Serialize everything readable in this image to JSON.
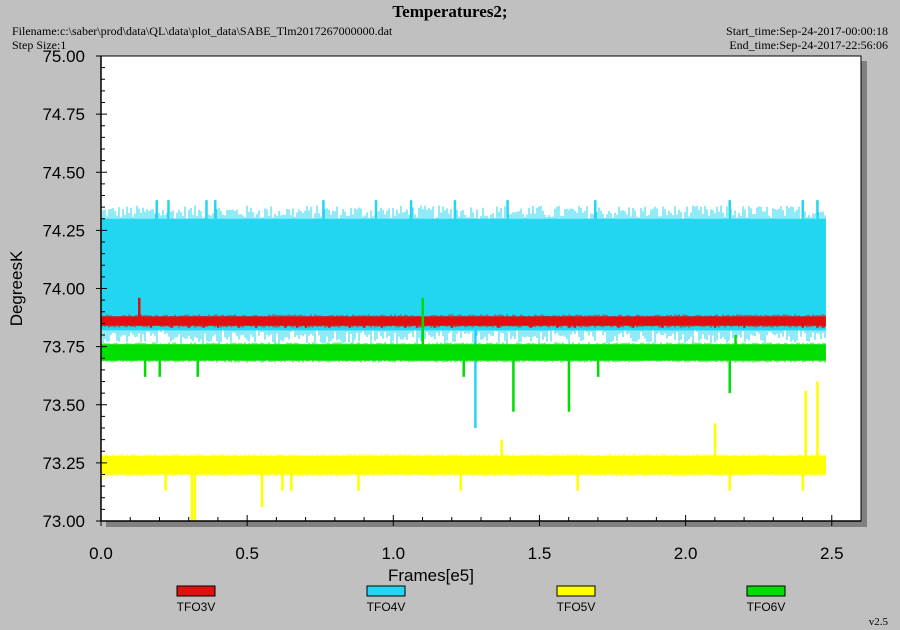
{
  "header": {
    "title": "Temperatures2;",
    "filename": "Filename:c:\\saber\\prod\\data\\QL\\data\\plot_data\\SABE_Tlm2017267000000.dat",
    "step_size": "Step Size:1",
    "start_time": "Start_time:Sep-24-2017-00:00:18",
    "end_time": "End_time:Sep-24-2017-22:56:06"
  },
  "version": "v2.5",
  "colors": {
    "background": "#c0c0c0",
    "plot_area": "#ffffff",
    "TFO3V": "#e01010",
    "TFO4V": "#22d5f0",
    "TFO5V": "#ffff00",
    "TFO6V": "#00dd00"
  },
  "chart_data": {
    "type": "line",
    "title": "Temperatures2;",
    "xlabel": "Frames[e5]",
    "ylabel": "DegreesK",
    "xlim": [
      0,
      2.6
    ],
    "ylim": [
      73.0,
      75.0
    ],
    "x_ticks": [
      "0.0",
      "0.5",
      "1.0",
      "1.5",
      "2.0",
      "2.5"
    ],
    "y_ticks": [
      "73.00",
      "73.25",
      "73.50",
      "73.75",
      "74.00",
      "74.25",
      "74.50",
      "74.75",
      "75.00"
    ],
    "grid": false,
    "legend_position": "bottom",
    "series": [
      {
        "name": "TFO3V",
        "band": [
          73.84,
          73.88
        ],
        "x_range": [
          0,
          2.48
        ],
        "spikes": [
          [
            0.13,
            73.96
          ],
          [
            0.17,
            73.84
          ],
          [
            0.24,
            73.84
          ],
          [
            0.3,
            73.84
          ],
          [
            0.35,
            73.84
          ],
          [
            0.4,
            73.84
          ],
          [
            0.47,
            73.84
          ],
          [
            0.53,
            73.84
          ],
          [
            0.63,
            73.84
          ],
          [
            0.67,
            73.84
          ],
          [
            0.7,
            73.84
          ],
          [
            0.78,
            73.84
          ],
          [
            0.85,
            73.84
          ],
          [
            0.9,
            73.84
          ],
          [
            0.96,
            73.84
          ],
          [
            1.04,
            73.84
          ],
          [
            1.08,
            73.84
          ],
          [
            1.14,
            73.84
          ],
          [
            1.2,
            73.84
          ],
          [
            1.36,
            73.84
          ],
          [
            1.47,
            73.84
          ],
          [
            1.56,
            73.84
          ],
          [
            1.6,
            73.84
          ],
          [
            1.62,
            73.84
          ],
          [
            1.77,
            73.84
          ],
          [
            1.82,
            73.84
          ],
          [
            1.92,
            73.84
          ],
          [
            2.1,
            73.84
          ],
          [
            2.2,
            73.84
          ],
          [
            2.4,
            73.84
          ],
          [
            2.45,
            73.84
          ],
          [
            2.47,
            73.84
          ]
        ]
      },
      {
        "name": "TFO4V",
        "band": [
          73.82,
          74.3
        ],
        "x_range": [
          0,
          2.48
        ],
        "spikes": [
          [
            0.19,
            74.38
          ],
          [
            0.23,
            74.38
          ],
          [
            0.36,
            74.38
          ],
          [
            0.39,
            74.38
          ],
          [
            0.76,
            74.38
          ],
          [
            0.94,
            74.38
          ],
          [
            1.06,
            74.38
          ],
          [
            1.21,
            74.38
          ],
          [
            1.39,
            74.38
          ],
          [
            1.69,
            74.38
          ],
          [
            2.15,
            74.38
          ],
          [
            2.4,
            74.38
          ],
          [
            2.45,
            74.38
          ],
          [
            1.28,
            73.4
          ]
        ]
      },
      {
        "name": "TFO5V",
        "band": [
          73.2,
          73.28
        ],
        "x_range": [
          0,
          2.48
        ],
        "spikes": [
          [
            0.22,
            73.13
          ],
          [
            0.31,
            73.0
          ],
          [
            0.32,
            73.0
          ],
          [
            0.55,
            73.06
          ],
          [
            0.62,
            73.13
          ],
          [
            0.65,
            73.13
          ],
          [
            0.88,
            73.13
          ],
          [
            1.23,
            73.13
          ],
          [
            1.37,
            73.35
          ],
          [
            1.63,
            73.13
          ],
          [
            2.1,
            73.42
          ],
          [
            2.15,
            73.13
          ],
          [
            2.4,
            73.13
          ],
          [
            2.41,
            73.56
          ],
          [
            2.45,
            73.6
          ]
        ]
      },
      {
        "name": "TFO6V",
        "band": [
          73.69,
          73.76
        ],
        "x_range": [
          0,
          2.48
        ],
        "spikes": [
          [
            0.15,
            73.62
          ],
          [
            0.2,
            73.62
          ],
          [
            0.33,
            73.62
          ],
          [
            1.1,
            73.96
          ],
          [
            1.24,
            73.62
          ],
          [
            1.41,
            73.47
          ],
          [
            1.6,
            73.47
          ],
          [
            1.7,
            73.62
          ],
          [
            2.15,
            73.55
          ],
          [
            2.17,
            73.8
          ]
        ]
      }
    ]
  }
}
